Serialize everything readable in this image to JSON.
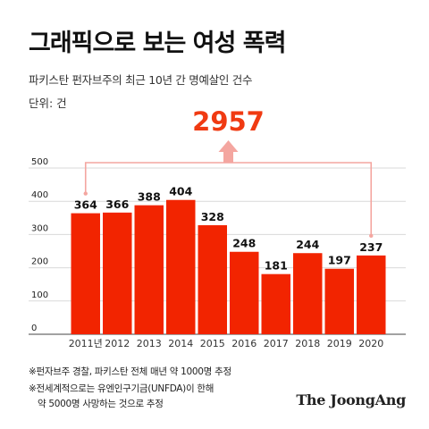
{
  "title": "그래픽으로 보는 여성 폭력",
  "subtitle": "파키스탄 펀자브주의 최근 10년 간 명예살인 건수",
  "unit": "단위: 건",
  "total_label": "2957",
  "footnotes": [
    "※펀자브주 경찰, 파키스탄 전체 매년 약 1000명 추정",
    "※전세계적으로는 유엔인구기금(UNFDA)이 한해",
    "약 5000명 사망하는 것으로 추정"
  ],
  "brand": "The JoongAng",
  "colors": {
    "bar": "#f22400",
    "total": "#f03a12",
    "bracket": "#f4a6a0",
    "grid": "#d9d9d9",
    "axis": "#444444"
  },
  "chart_data": {
    "type": "bar",
    "categories": [
      "2011년",
      "2012",
      "2013",
      "2014",
      "2015",
      "2016",
      "2017",
      "2018",
      "2019",
      "2020"
    ],
    "values": [
      364,
      366,
      388,
      404,
      328,
      248,
      181,
      244,
      197,
      237
    ],
    "ylim": [
      0,
      500
    ],
    "yticks": [
      0,
      100,
      200,
      300,
      400,
      500
    ],
    "grid": true,
    "annotation": {
      "text": "2957",
      "spans": [
        "2011년",
        "2020"
      ]
    }
  }
}
